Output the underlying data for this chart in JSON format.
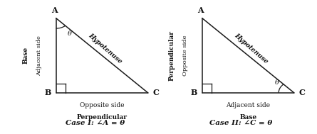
{
  "bg_color": "#ffffff",
  "fig_width": 4.45,
  "fig_height": 1.89,
  "line_color": "#1a1a1a",
  "text_color": "#111111",
  "case1": {
    "A": [
      0.22,
      0.88
    ],
    "B": [
      0.22,
      0.3
    ],
    "C": [
      0.88,
      0.3
    ],
    "label_A": "A",
    "label_B": "B",
    "label_C": "C",
    "theta_label": "θ",
    "hyp_label": "Hypotenuse",
    "left_label1": "Base",
    "left_label2": "Adjacent side",
    "bot_label1": "Opposite side",
    "bot_label2": "Perpendicular",
    "case_label": "Case I: ∠A = θ",
    "ra_size": 0.07
  },
  "case2": {
    "A": [
      0.22,
      0.88
    ],
    "B": [
      0.22,
      0.3
    ],
    "C": [
      0.88,
      0.3
    ],
    "label_A": "A",
    "label_B": "B",
    "label_C": "C",
    "theta_label": "θ",
    "hyp_label": "Hypotenuse",
    "left_label1": "Perpendicular",
    "left_label2": "Opposite side",
    "bot_label1": "Adjacent side",
    "bot_label2": "Base",
    "case_label": "Case II: ∠C = θ",
    "ra_size": 0.07
  }
}
